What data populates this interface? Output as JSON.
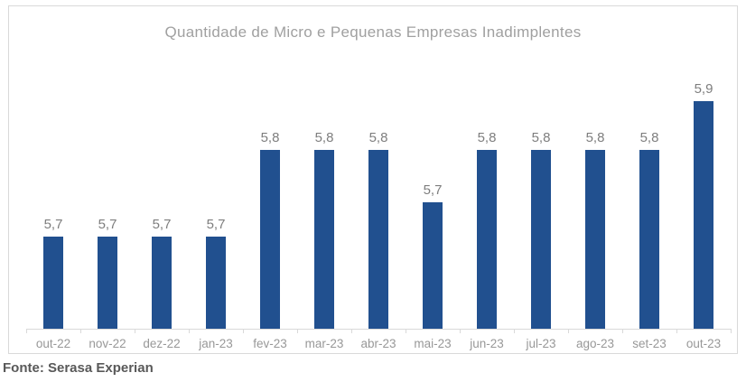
{
  "title": "Quantidade de Micro e Pequenas Empresas Inadimplentes",
  "footer": {
    "source_label": "Fonte: Serasa Experian"
  },
  "colors": {
    "bar": "#21508F",
    "axis": "#D9D9D9",
    "frame_border": "#D9D9D9",
    "title_text": "#A0A0A0",
    "axis_label": "#989898",
    "data_label": "#7E7E7E",
    "footer_text": "#595959"
  },
  "chart_data": {
    "type": "bar",
    "title": "Quantidade de Micro e Pequenas Empresas Inadimplentes",
    "categories": [
      "out-22",
      "nov-22",
      "dez-22",
      "jan-23",
      "fev-23",
      "mar-23",
      "abr-23",
      "mai-23",
      "jun-23",
      "jul-23",
      "ago-23",
      "set-23",
      "out-23"
    ],
    "values": [
      5.7,
      5.7,
      5.7,
      5.7,
      5.8,
      5.8,
      5.8,
      5.74,
      5.8,
      5.8,
      5.8,
      5.8,
      5.855
    ],
    "data_labels": [
      "5,7",
      "5,7",
      "5,7",
      "5,7",
      "5,8",
      "5,8",
      "5,8",
      "5,7",
      "5,8",
      "5,8",
      "5,8",
      "5,8",
      "5,9"
    ],
    "xlabel": "",
    "ylabel": "",
    "ylim": [
      5.595,
      5.905
    ],
    "grid": false,
    "legend": null,
    "y_axis_labels_visible": false,
    "x_axis": {
      "line": true,
      "tick_marks": 14
    },
    "source_note": "Fonte: Serasa Experian"
  }
}
